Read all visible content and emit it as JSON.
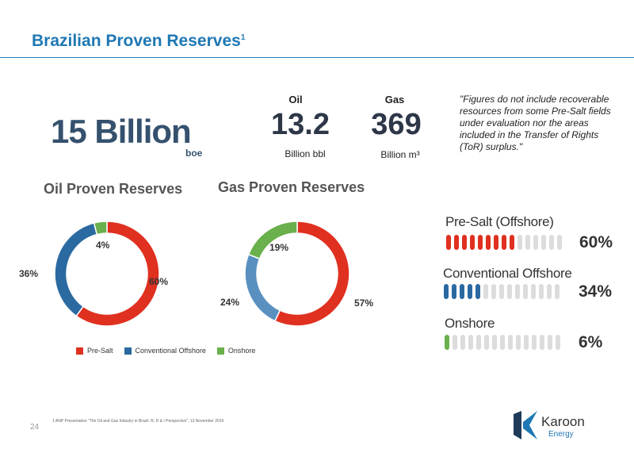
{
  "header": {
    "title": "Brazilian Proven Reserves",
    "title_sup": "1"
  },
  "headline": {
    "value": "15 Billion",
    "unit": "boe"
  },
  "oil": {
    "label": "Oil",
    "value": "13.2",
    "unit": "Billion bbl"
  },
  "gas": {
    "label": "Gas",
    "value": "369",
    "unit": "Billion m³"
  },
  "quote": "\"Figures do not include recoverable resources from some Pre-Salt fields under evaluation nor the areas included in the Transfer of Rights (ToR) surplus.\"",
  "colors": {
    "pre_salt": "#e03020",
    "conventional_offshore": "#2a6aa0",
    "onshore": "#6ab04c",
    "gas_conventional": "#5a90c0",
    "title_blue": "#1f78b4"
  },
  "chart_data": [
    {
      "type": "pie",
      "title": "Oil Proven Reserves",
      "categories": [
        "Pre-Salt",
        "Conventional Offshore",
        "Onshore"
      ],
      "values": [
        60,
        36,
        4
      ],
      "labels": [
        "60%",
        "36%",
        "4%"
      ],
      "legend": "bottom"
    },
    {
      "type": "pie",
      "title": "Gas Proven Reserves",
      "categories": [
        "Pre-Salt",
        "Conventional Offshore",
        "Onshore"
      ],
      "values": [
        57,
        24,
        19
      ],
      "labels": [
        "57%",
        "24%",
        "19%"
      ],
      "legend": "bottom"
    },
    {
      "type": "bar",
      "categories": [
        "Pre-Salt (Offshore)",
        "Conventional Offshore",
        "Onshore"
      ],
      "values": [
        60,
        34,
        6
      ],
      "labels": [
        "60%",
        "34%",
        "6%"
      ]
    }
  ],
  "legend": [
    "Pre-Salt",
    "Conventional Offshore",
    "Onshore"
  ],
  "footnote": "1 ANP Presentation \"The Oil and Gas Industry in Brazil: R, D & I Perspective\", 13 November 2019",
  "page_number": "24",
  "logo": {
    "name": "Karoon",
    "sub": "Energy"
  }
}
